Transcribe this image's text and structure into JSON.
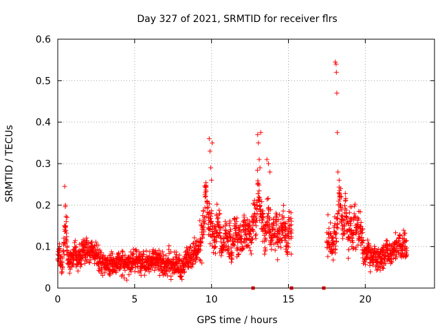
{
  "colors": {
    "series": "#ff0000",
    "axis": "#000000",
    "grid": "#a0a0a0",
    "background": "#ffffff"
  },
  "chart_data": {
    "type": "scatter",
    "title": "Day 327 of 2021, SRMTID for receiver flrs",
    "xlabel": "GPS time / hours",
    "ylabel": "SRMTID / TECUs",
    "xlim": [
      0,
      24.5
    ],
    "ylim": [
      0,
      0.6
    ],
    "xticks": [
      0,
      5,
      10,
      15,
      20
    ],
    "xtick_labels": [
      "0",
      "5",
      "10",
      "15",
      "20"
    ],
    "yticks": [
      0,
      0.1,
      0.2,
      0.3,
      0.4,
      0.5,
      0.6
    ],
    "ytick_labels": [
      "0",
      "0.1",
      "0.2",
      "0.3",
      "0.4",
      "0.5",
      "0.6"
    ],
    "grid": true,
    "marker": "plus",
    "series": [
      {
        "name": "SRMTID",
        "segments": [
          {
            "x": [
              0.0,
              0.1,
              0.2,
              0.3,
              0.4,
              0.5,
              0.6,
              0.7,
              0.8,
              0.9,
              1.0,
              1.1,
              1.2,
              1.3,
              1.4,
              1.5,
              1.6,
              1.7,
              1.8,
              1.9,
              2.0,
              2.1,
              2.2,
              2.3,
              2.4,
              2.5,
              2.6,
              2.7,
              2.8,
              2.9,
              3.0,
              3.1,
              3.2,
              3.3,
              3.4,
              3.5,
              3.6,
              3.7,
              3.8,
              3.9,
              4.0,
              4.1,
              4.2,
              4.3,
              4.4,
              4.5,
              4.6,
              4.7,
              4.8,
              4.9,
              5.0,
              5.1,
              5.2,
              5.3,
              5.4,
              5.5,
              5.6,
              5.7,
              5.8,
              5.9,
              6.0,
              6.1,
              6.2,
              6.3,
              6.4,
              6.5,
              6.6,
              6.7,
              6.8,
              6.9,
              7.0,
              7.1,
              7.2,
              7.3,
              7.4,
              7.5,
              7.6,
              7.7,
              7.8,
              7.9,
              8.0,
              8.1,
              8.2,
              8.3,
              8.4,
              8.5,
              8.6,
              8.7,
              8.8,
              8.9,
              9.0,
              9.1,
              9.2,
              9.3,
              9.4,
              9.5,
              9.6,
              9.7,
              9.8,
              9.9,
              10.0,
              10.1,
              10.2,
              10.3,
              10.4,
              10.5,
              10.6,
              10.7,
              10.8,
              10.9,
              11.0,
              11.1,
              11.2,
              11.3,
              11.4,
              11.5,
              11.6,
              11.7,
              11.8,
              11.9,
              12.0,
              12.1,
              12.2,
              12.3,
              12.4,
              12.5,
              12.6,
              12.7,
              12.8,
              12.9,
              13.0,
              13.1,
              13.2,
              13.3,
              13.4,
              13.5,
              13.6,
              13.7,
              13.8,
              13.9,
              14.0,
              14.1,
              14.2,
              14.3,
              14.4,
              14.5,
              14.6,
              14.7,
              14.8,
              14.9,
              15.0,
              15.1,
              15.2
            ],
            "y": [
              0.07,
              0.09,
              0.06,
              0.05,
              0.11,
              0.15,
              0.09,
              0.07,
              0.06,
              0.08,
              0.07,
              0.09,
              0.08,
              0.06,
              0.08,
              0.07,
              0.09,
              0.1,
              0.08,
              0.09,
              0.09,
              0.08,
              0.1,
              0.09,
              0.08,
              0.09,
              0.08,
              0.07,
              0.06,
              0.07,
              0.06,
              0.06,
              0.07,
              0.05,
              0.06,
              0.07,
              0.06,
              0.06,
              0.05,
              0.07,
              0.06,
              0.05,
              0.07,
              0.05,
              0.06,
              0.05,
              0.07,
              0.06,
              0.06,
              0.07,
              0.06,
              0.07,
              0.06,
              0.07,
              0.06,
              0.07,
              0.06,
              0.05,
              0.07,
              0.06,
              0.07,
              0.06,
              0.07,
              0.06,
              0.08,
              0.07,
              0.06,
              0.07,
              0.06,
              0.05,
              0.06,
              0.05,
              0.07,
              0.06,
              0.05,
              0.06,
              0.05,
              0.06,
              0.05,
              0.06,
              0.04,
              0.06,
              0.05,
              0.07,
              0.08,
              0.06,
              0.07,
              0.07,
              0.08,
              0.09,
              0.08,
              0.09,
              0.1,
              0.11,
              0.12,
              0.16,
              0.23,
              0.21,
              0.17,
              0.14,
              0.16,
              0.13,
              0.1,
              0.14,
              0.16,
              0.15,
              0.12,
              0.09,
              0.11,
              0.13,
              0.12,
              0.1,
              0.13,
              0.08,
              0.12,
              0.15,
              0.13,
              0.11,
              0.14,
              0.12,
              0.1,
              0.15,
              0.13,
              0.12,
              0.14,
              0.13,
              0.11,
              0.16,
              0.18,
              0.15,
              0.25,
              0.21,
              0.19,
              0.17,
              0.15,
              0.12,
              0.16,
              0.18,
              0.14,
              0.12,
              0.15,
              0.13,
              0.17,
              0.11,
              0.14,
              0.12,
              0.15,
              0.17,
              0.14,
              0.1,
              0.13,
              0.15,
              0.14
            ]
          },
          {
            "x": [
              17.5,
              17.6,
              17.7,
              17.8,
              17.9,
              18.0,
              18.1,
              18.2,
              18.3,
              18.4,
              18.5,
              18.6,
              18.7,
              18.8,
              18.9,
              19.0,
              19.1,
              19.2,
              19.3,
              19.4,
              19.5,
              19.6,
              19.7,
              19.8,
              19.9,
              20.0,
              20.1,
              20.2,
              20.3,
              20.4,
              20.5,
              20.6,
              20.7,
              20.8,
              20.9,
              21.0,
              21.1,
              21.2,
              21.3,
              21.4,
              21.5,
              21.6,
              21.7,
              21.8,
              21.9,
              22.0,
              22.1,
              22.2,
              22.3,
              22.4,
              22.5,
              22.6,
              22.7
            ],
            "y": [
              0.11,
              0.13,
              0.1,
              0.12,
              0.11,
              0.15,
              0.12,
              0.18,
              0.23,
              0.2,
              0.15,
              0.13,
              0.21,
              0.17,
              0.12,
              0.16,
              0.14,
              0.11,
              0.17,
              0.13,
              0.15,
              0.12,
              0.14,
              0.11,
              0.09,
              0.07,
              0.08,
              0.1,
              0.06,
              0.08,
              0.07,
              0.09,
              0.07,
              0.06,
              0.08,
              0.07,
              0.09,
              0.07,
              0.08,
              0.1,
              0.07,
              0.09,
              0.08,
              0.1,
              0.09,
              0.11,
              0.09,
              0.12,
              0.1,
              0.09,
              0.11,
              0.1,
              0.09
            ]
          }
        ],
        "peaks": [
          {
            "x": [
              0.45,
              0.5,
              0.55,
              0.6
            ],
            "y": [
              0.245,
              0.2,
              0.16,
              0.17
            ]
          },
          {
            "x": [
              9.85,
              9.9,
              9.95,
              10.0,
              10.05
            ],
            "y": [
              0.36,
              0.33,
              0.29,
              0.26,
              0.35
            ]
          },
          {
            "x": [
              13.0,
              13.05,
              13.1,
              13.15,
              13.2
            ],
            "y": [
              0.37,
              0.35,
              0.31,
              0.29,
              0.375
            ]
          },
          {
            "x": [
              13.6,
              13.7,
              13.8
            ],
            "y": [
              0.31,
              0.3,
              0.28
            ]
          },
          {
            "x": [
              18.05,
              18.1,
              18.12,
              18.15,
              18.18,
              18.22,
              18.3,
              18.4
            ],
            "y": [
              0.545,
              0.54,
              0.52,
              0.47,
              0.375,
              0.28,
              0.26,
              0.24
            ]
          }
        ],
        "low_values": [
          {
            "x": 12.7,
            "y": 0.0
          },
          {
            "x": 15.2,
            "y": 0.0
          },
          {
            "x": 17.3,
            "y": 0.0
          }
        ]
      }
    ]
  }
}
